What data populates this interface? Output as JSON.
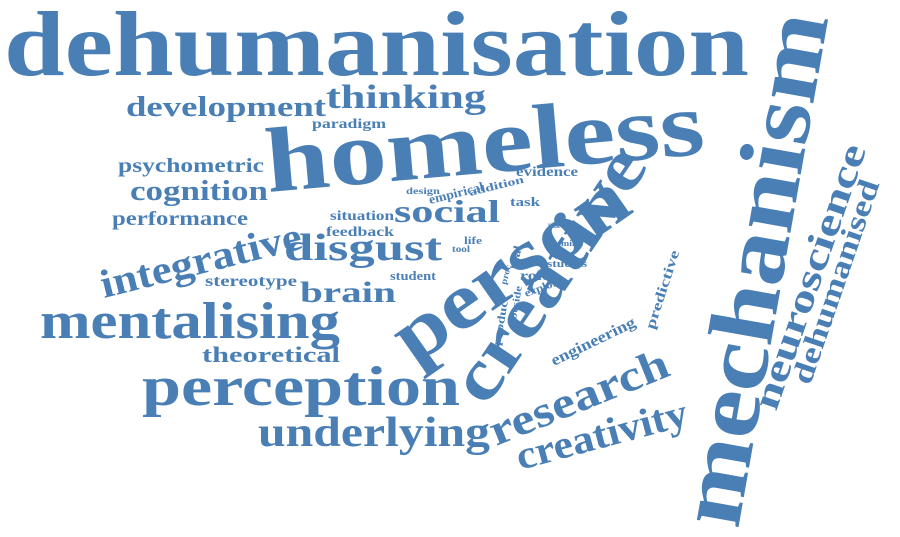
{
  "color": "#4a7fb5",
  "words": {
    "dehumanisation": "dehumanisation",
    "homeless": "homeless",
    "person": "person",
    "creative": "creative",
    "mechanism": "mechanism",
    "perception": "perception",
    "mentalising": "mentalising",
    "research": "research",
    "creativity": "creativity",
    "underlying": "underlying",
    "integrative": "integrative",
    "neuroscience": "neuroscience",
    "dehumanised": "dehumanised",
    "disgust": "disgust",
    "social": "social",
    "thinking": "thinking",
    "development": "development",
    "cognition": "cognition",
    "psychometric": "psychometric",
    "performance": "performance",
    "brain": "brain",
    "theoretical": "theoretical",
    "stereotype": "stereotype",
    "paradigm": "paradigm",
    "evidence": "evidence",
    "empirical": "empirical",
    "addition": "addition",
    "design": "design",
    "task": "task",
    "situation": "situation",
    "feedback": "feedback",
    "tool": "tool",
    "life": "life",
    "link": "link",
    "mind": "mind",
    "student": "student",
    "real": "real",
    "role": "role",
    "studies": "studies",
    "proc": "proc",
    "explore": "explore",
    "beside": "beside",
    "product": "product",
    "engineering": "engineering",
    "predictive": "predictive"
  }
}
